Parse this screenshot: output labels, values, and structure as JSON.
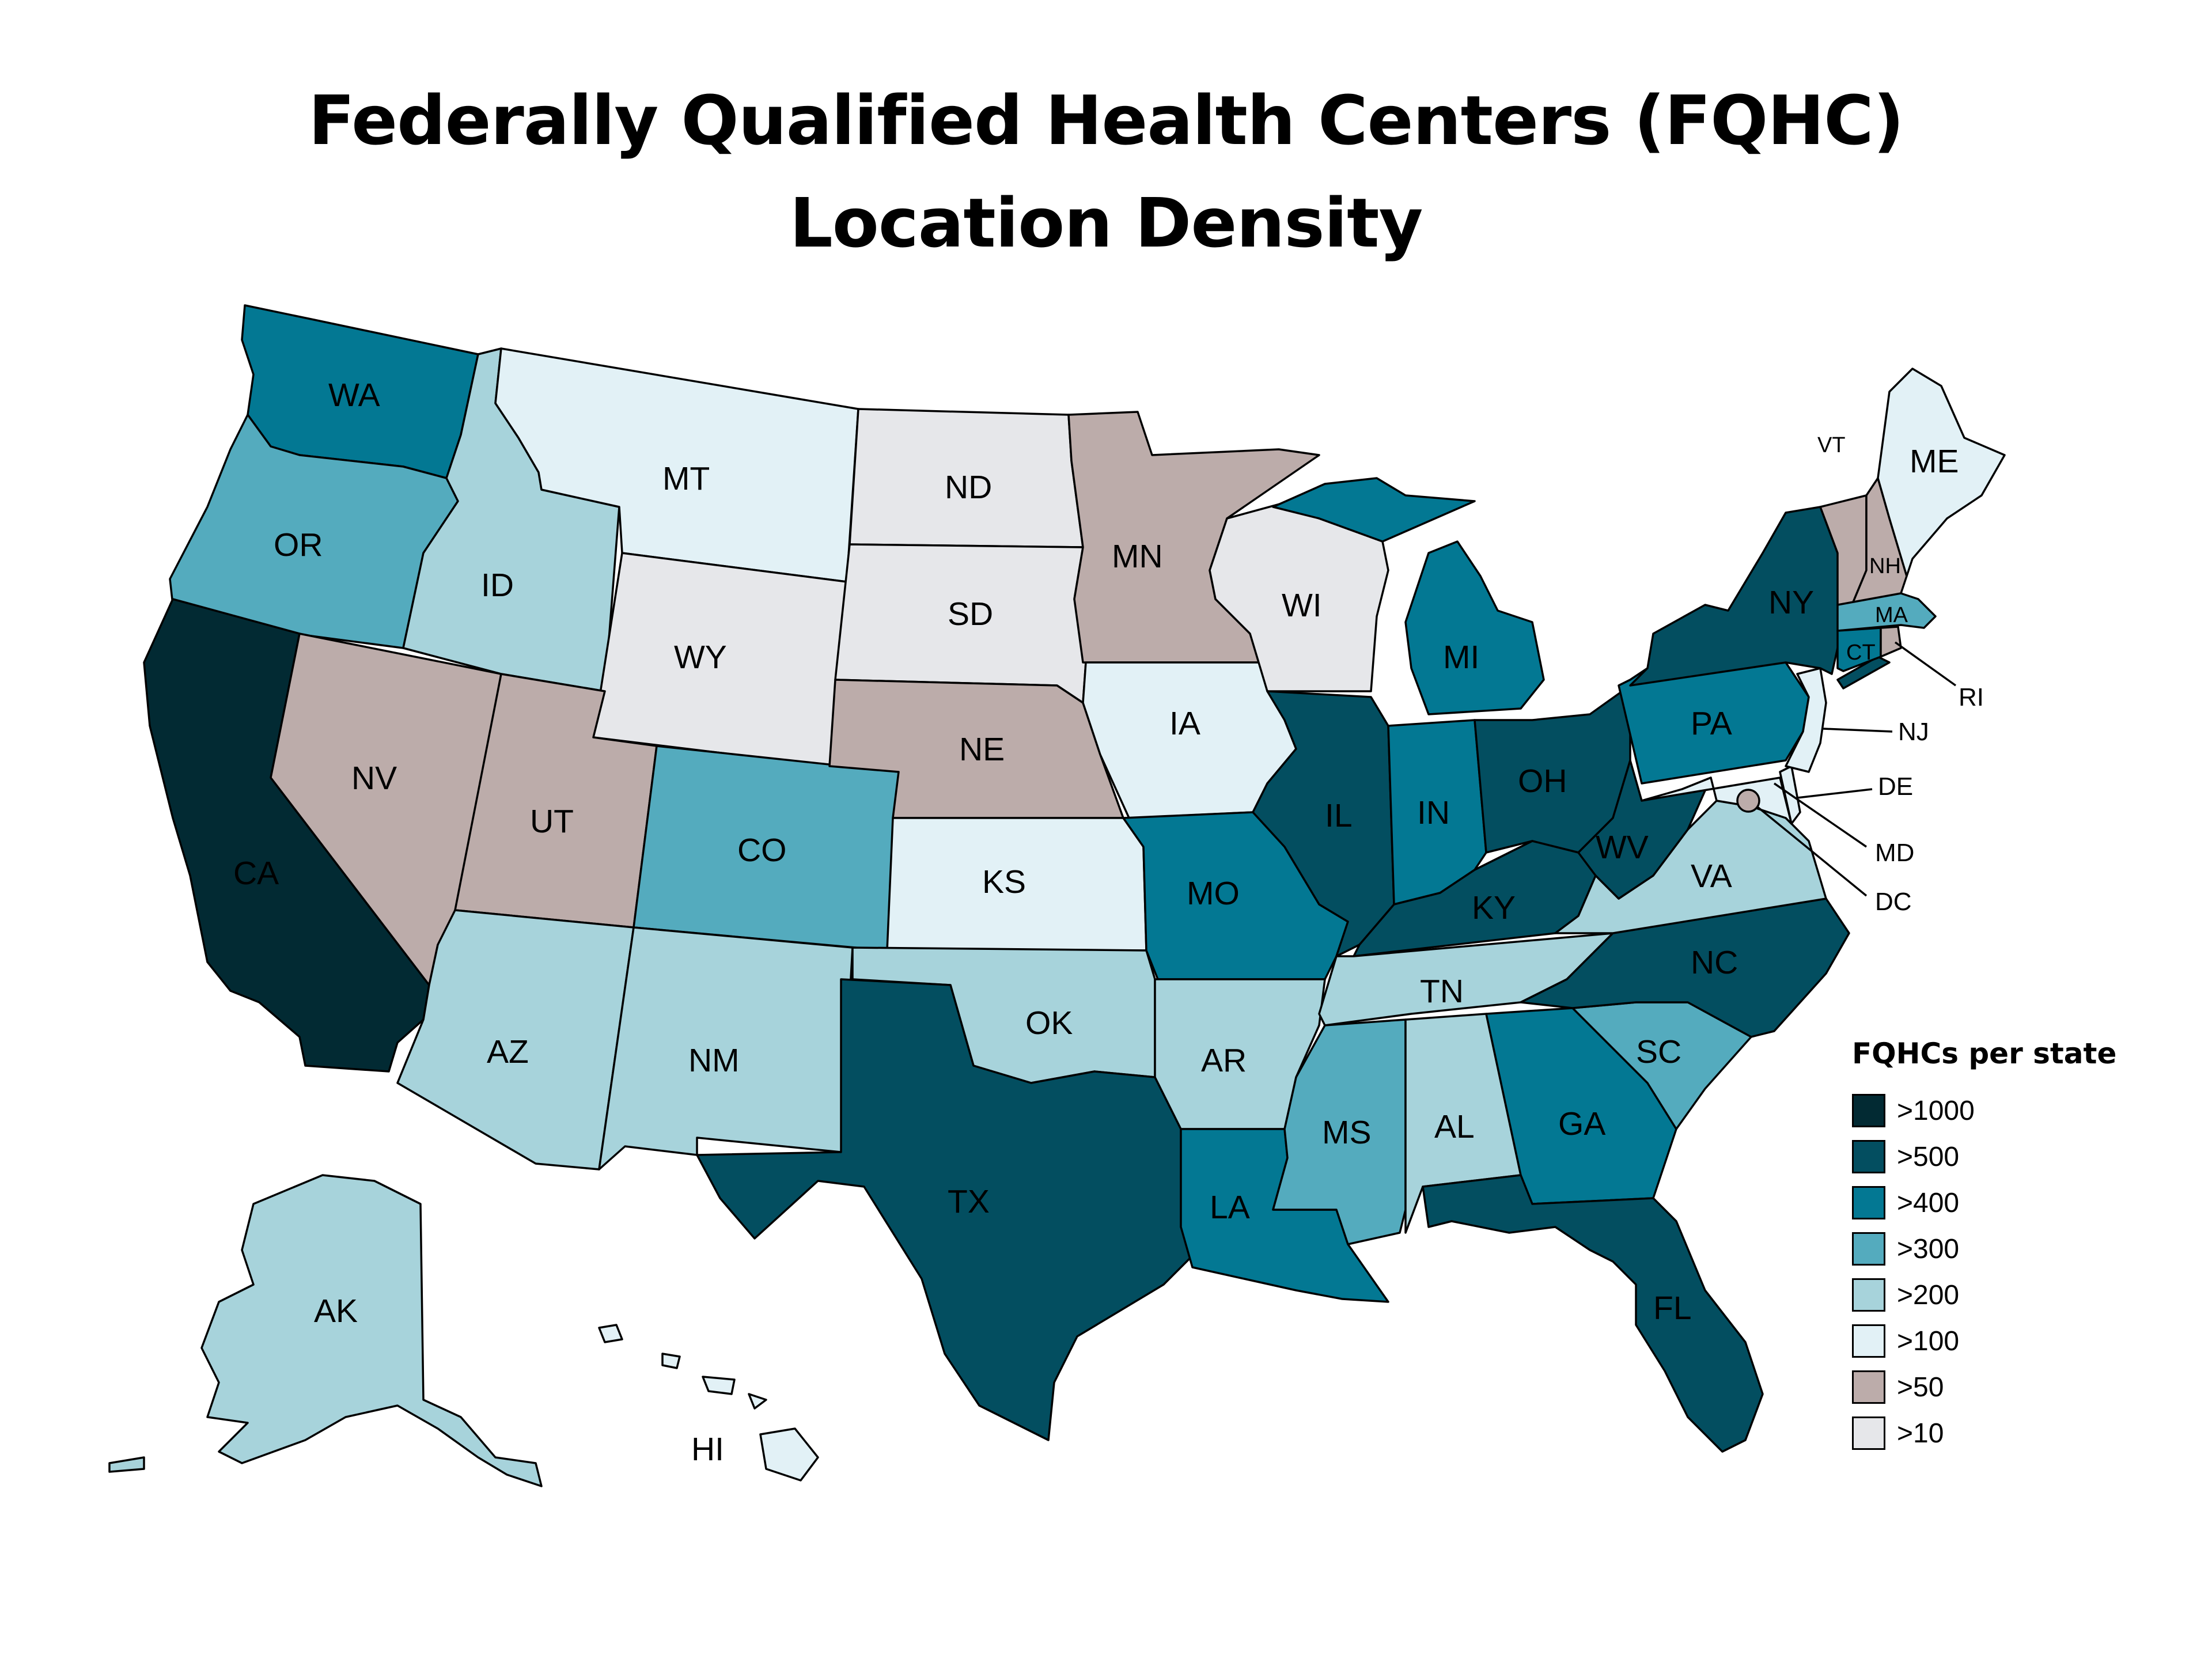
{
  "title_line1": "Federally Qualified Health Centers (FQHC)",
  "title_line2": "Location Density",
  "legend": {
    "title": "FQHCs per state",
    "items": [
      {
        "label": ">1000",
        "color": "#022a33"
      },
      {
        "label": ">500",
        "color": "#034e60"
      },
      {
        "label": ">400",
        "color": "#037893"
      },
      {
        "label": ">300",
        "color": "#54abbe"
      },
      {
        "label": ">200",
        "color": "#a7d3db"
      },
      {
        "label": ">100",
        "color": "#e2f1f6"
      },
      {
        "label": ">50",
        "color": "#bcacaa"
      },
      {
        "label": ">10",
        "color": "#e6e7ea"
      }
    ]
  },
  "states": [
    {
      "abbr": "WA",
      "bin": ">400"
    },
    {
      "abbr": "OR",
      "bin": ">300"
    },
    {
      "abbr": "CA",
      "bin": ">1000"
    },
    {
      "abbr": "NV",
      "bin": ">50"
    },
    {
      "abbr": "ID",
      "bin": ">200"
    },
    {
      "abbr": "MT",
      "bin": ">100"
    },
    {
      "abbr": "WY",
      "bin": ">10"
    },
    {
      "abbr": "UT",
      "bin": ">50"
    },
    {
      "abbr": "AZ",
      "bin": ">200"
    },
    {
      "abbr": "CO",
      "bin": ">300"
    },
    {
      "abbr": "NM",
      "bin": ">200"
    },
    {
      "abbr": "ND",
      "bin": ">10"
    },
    {
      "abbr": "SD",
      "bin": ">10"
    },
    {
      "abbr": "NE",
      "bin": ">50"
    },
    {
      "abbr": "KS",
      "bin": ">100"
    },
    {
      "abbr": "OK",
      "bin": ">200"
    },
    {
      "abbr": "TX",
      "bin": ">500"
    },
    {
      "abbr": "MN",
      "bin": ">50"
    },
    {
      "abbr": "IA",
      "bin": ">100"
    },
    {
      "abbr": "MO",
      "bin": ">400"
    },
    {
      "abbr": "AR",
      "bin": ">200"
    },
    {
      "abbr": "LA",
      "bin": ">400"
    },
    {
      "abbr": "WI",
      "bin": ">10"
    },
    {
      "abbr": "IL",
      "bin": ">500"
    },
    {
      "abbr": "MI",
      "bin": ">400"
    },
    {
      "abbr": "IN",
      "bin": ">400"
    },
    {
      "abbr": "OH",
      "bin": ">500"
    },
    {
      "abbr": "KY",
      "bin": ">500"
    },
    {
      "abbr": "TN",
      "bin": ">200"
    },
    {
      "abbr": "MS",
      "bin": ">300"
    },
    {
      "abbr": "AL",
      "bin": ">200"
    },
    {
      "abbr": "GA",
      "bin": ">400"
    },
    {
      "abbr": "FL",
      "bin": ">500"
    },
    {
      "abbr": "SC",
      "bin": ">300"
    },
    {
      "abbr": "NC",
      "bin": ">500"
    },
    {
      "abbr": "VA",
      "bin": ">200"
    },
    {
      "abbr": "WV",
      "bin": ">500"
    },
    {
      "abbr": "PA",
      "bin": ">400"
    },
    {
      "abbr": "NY",
      "bin": ">500"
    },
    {
      "abbr": "VT",
      "bin": ">50"
    },
    {
      "abbr": "NH",
      "bin": ">50"
    },
    {
      "abbr": "ME",
      "bin": ">100"
    },
    {
      "abbr": "MA",
      "bin": ">300"
    },
    {
      "abbr": "RI",
      "bin": ">50"
    },
    {
      "abbr": "CT",
      "bin": ">400"
    },
    {
      "abbr": "NJ",
      "bin": ">100"
    },
    {
      "abbr": "DE",
      "bin": ">100"
    },
    {
      "abbr": "MD",
      "bin": ">100"
    },
    {
      "abbr": "DC",
      "bin": ">50"
    },
    {
      "abbr": "AK",
      "bin": ">200"
    },
    {
      "abbr": "HI",
      "bin": ">100"
    }
  ]
}
